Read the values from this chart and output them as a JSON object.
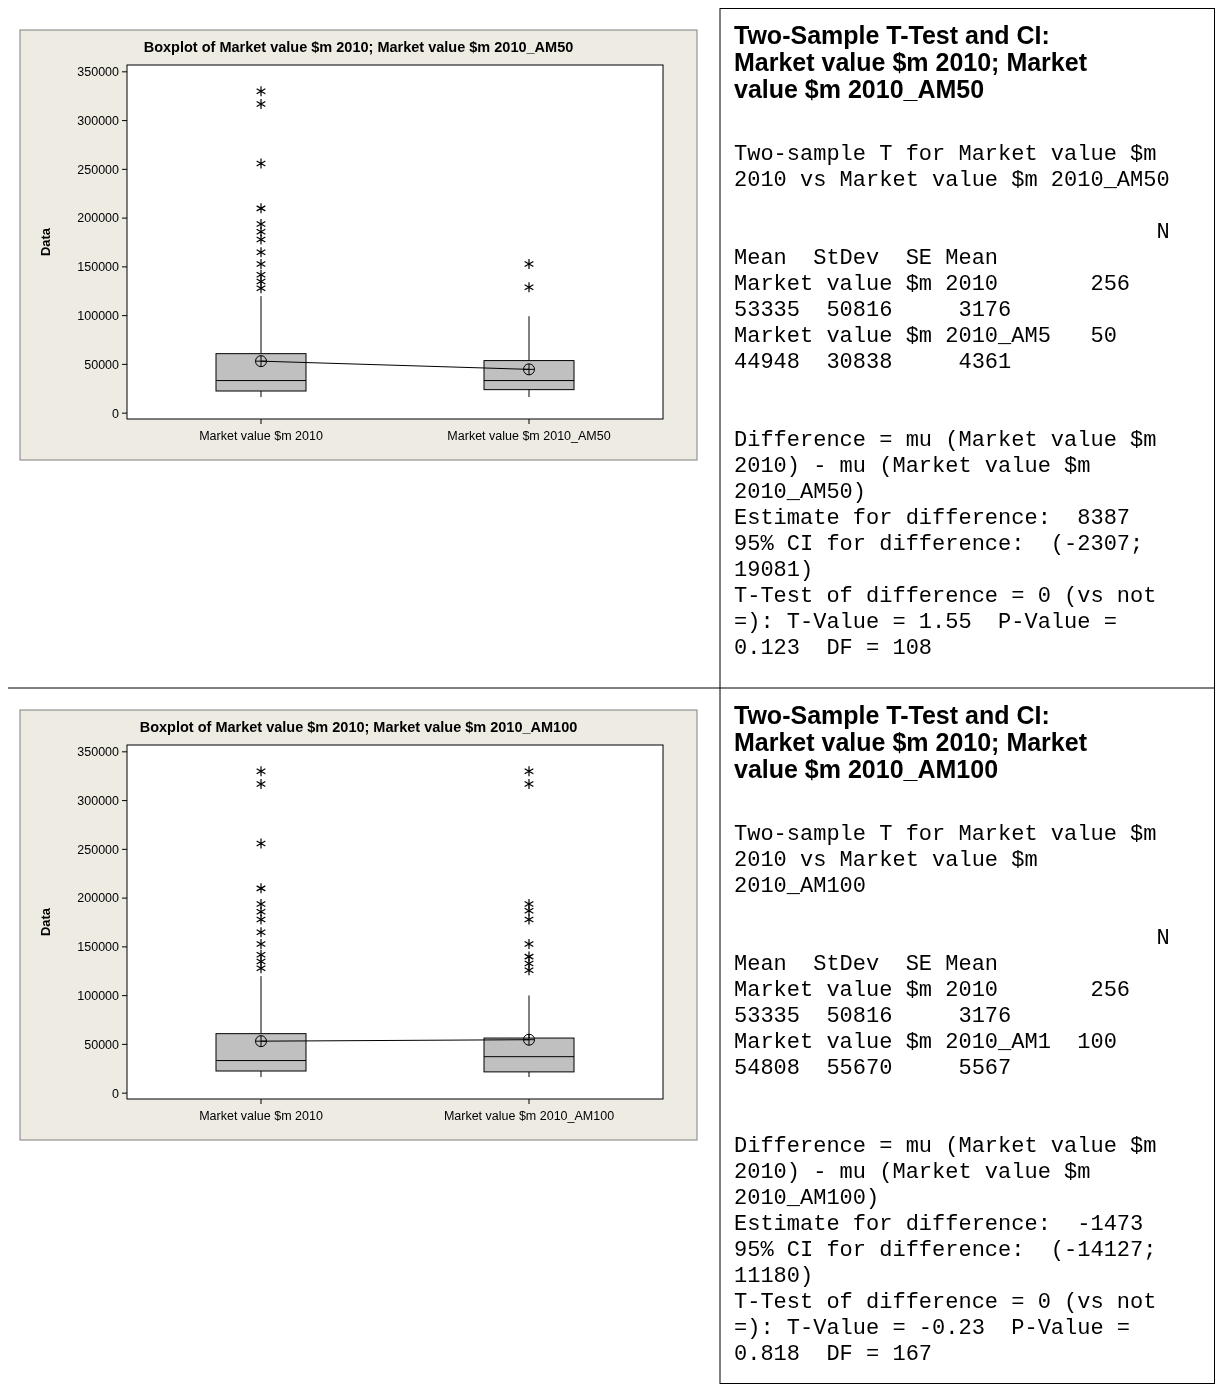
{
  "chart_data": [
    {
      "type": "box",
      "title": "Boxplot of Market value $m 2010; Market value $m 2010_AM50",
      "ylabel": "Data",
      "categories": [
        "Market value $m 2010",
        "Market value $m 2010_AM50"
      ],
      "ylim": [
        -6000,
        357000
      ],
      "yticks": [
        0,
        50000,
        100000,
        150000,
        200000,
        250000,
        300000,
        350000
      ],
      "color": "#c0c0c0",
      "boxes": [
        {
          "low": 16500,
          "q1": 22700,
          "median": 33400,
          "q3": 61000,
          "high": 120000,
          "mean": 53300,
          "outliers": [
            330000,
            317000,
            256000,
            210000,
            194000,
            186000,
            178000,
            165000,
            153000,
            142000,
            135000,
            128000
          ]
        },
        {
          "low": 16500,
          "q1": 24100,
          "median": 33400,
          "q3": 53900,
          "high": 99400,
          "mean": 44900,
          "outliers": [
            153000,
            129000
          ]
        }
      ],
      "series": [
        {
          "type": "line",
          "color": "#000000",
          "values": [
            53300,
            44900
          ]
        }
      ]
    },
    {
      "type": "other",
      "title": "Two-Sample T-Test and CI: Market value $m 2010; Market value $m 2010_AM50",
      "annotations": [
        "Two-sample T for Market value $m\n2010 vs Market value $m 2010_AM50",
        "                                N\nMean  StDev  SE Mean\nMarket value $m 2010       256\n53335  50816     3176\nMarket value $m 2010_AM5   50\n44948  30838     4361",
        "Difference = mu (Market value $m\n2010) - mu (Market value $m\n2010_AM50)\nEstimate for difference:  8387\n95% CI for difference:  (-2307;\n19081)\nT-Test of difference = 0 (vs not\n=): T-Value = 1.55  P-Value =\n0.123  DF = 108"
      ]
    },
    {
      "type": "box",
      "title": "Boxplot of Market value $m 2010; Market value $m 2010_AM100",
      "ylabel": "Data",
      "categories": [
        "Market value $m 2010",
        "Market value $m 2010_AM100"
      ],
      "ylim": [
        -6000,
        357000
      ],
      "yticks": [
        0,
        50000,
        100000,
        150000,
        200000,
        250000,
        300000,
        350000
      ],
      "color": "#c0c0c0",
      "boxes": [
        {
          "low": 16500,
          "q1": 22700,
          "median": 33400,
          "q3": 61000,
          "high": 120000,
          "mean": 53300,
          "outliers": [
            330000,
            317000,
            256000,
            210000,
            194000,
            186000,
            178000,
            165000,
            153000,
            142000,
            135000,
            128000
          ]
        },
        {
          "low": 16500,
          "q1": 21800,
          "median": 37400,
          "q3": 56500,
          "high": 100200,
          "mean": 54800,
          "outliers": [
            330000,
            317000,
            194000,
            187000,
            178000,
            153000,
            140000,
            133000,
            126000
          ]
        }
      ],
      "series": [
        {
          "type": "line",
          "color": "#000000",
          "values": [
            53300,
            54800
          ]
        }
      ]
    },
    {
      "type": "other",
      "title": "Two-Sample T-Test and CI: Market value $m 2010; Market value $m 2010_AM100",
      "annotations": [
        "Two-sample T for Market value $m\n2010 vs Market value $m\n2010_AM100",
        "                                N\nMean  StDev  SE Mean\nMarket value $m 2010       256\n53335  50816     3176\nMarket value $m 2010_AM1  100\n54808  55670     5567",
        "Difference = mu (Market value $m\n2010) - mu (Market value $m\n2010_AM100)\nEstimate for difference:  -1473\n95% CI for difference:  (-14127;\n11180)\nT-Test of difference = 0 (vs not\n=): T-Value = -0.23  P-Value =\n0.818  DF = 167"
      ]
    }
  ]
}
